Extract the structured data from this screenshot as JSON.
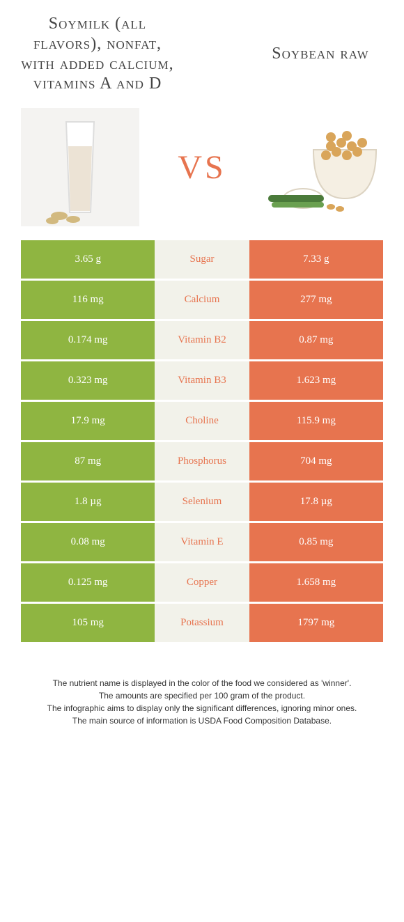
{
  "colors": {
    "left": "#8fb541",
    "right": "#e7744f",
    "mid_bg": "#f2f2ea",
    "vs": "#e7744f"
  },
  "title_left": "Soymilk (all flavors), nonfat, with added calcium, vitamins A and D",
  "title_right": "Soybean raw",
  "vs": "VS",
  "rows": [
    {
      "left": "3.65 g",
      "name": "Sugar",
      "right": "7.33 g",
      "winner": "right"
    },
    {
      "left": "116 mg",
      "name": "Calcium",
      "right": "277 mg",
      "winner": "right"
    },
    {
      "left": "0.174 mg",
      "name": "Vitamin B2",
      "right": "0.87 mg",
      "winner": "right"
    },
    {
      "left": "0.323 mg",
      "name": "Vitamin B3",
      "right": "1.623 mg",
      "winner": "right"
    },
    {
      "left": "17.9 mg",
      "name": "Choline",
      "right": "115.9 mg",
      "winner": "right"
    },
    {
      "left": "87 mg",
      "name": "Phosphorus",
      "right": "704 mg",
      "winner": "right"
    },
    {
      "left": "1.8 µg",
      "name": "Selenium",
      "right": "17.8 µg",
      "winner": "right"
    },
    {
      "left": "0.08 mg",
      "name": "Vitamin E",
      "right": "0.85 mg",
      "winner": "right"
    },
    {
      "left": "0.125 mg",
      "name": "Copper",
      "right": "1.658 mg",
      "winner": "right"
    },
    {
      "left": "105 mg",
      "name": "Potassium",
      "right": "1797 mg",
      "winner": "right"
    }
  ],
  "footer": [
    "The nutrient name is displayed in the color of the food we considered as 'winner'.",
    "The amounts are specified per 100 gram of the product.",
    "The infographic aims to display only the significant differences, ignoring minor ones.",
    "The main source of information is USDA Food Composition Database."
  ]
}
